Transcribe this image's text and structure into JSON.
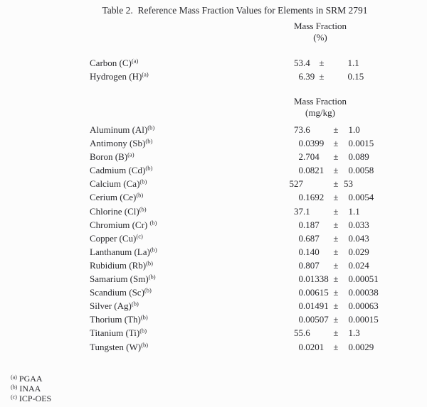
{
  "page": {
    "title": "Table 2.  Reference Mass Fraction Values for Elements in SRM 2791"
  },
  "colors": {
    "background": "#fcfcfc",
    "text": "#28282c"
  },
  "table": {
    "plus_minus": "±",
    "sections": [
      {
        "header_line1": "Mass Fraction",
        "header_line2": "(%)",
        "rows": [
          {
            "element": "Carbon (C)",
            "sup": "(a)",
            "value": "53.4",
            "uncertainty": "1.1"
          },
          {
            "element": "Hydrogen (H)",
            "sup": "(a)",
            "value": "6.39",
            "uncertainty": "0.15"
          }
        ]
      },
      {
        "header_line1": "Mass Fraction",
        "header_line2": "(mg/kg)",
        "rows": [
          {
            "element": "Aluminum (Al)",
            "sup": "(b)",
            "value": "73.6",
            "uncertainty": "1.0"
          },
          {
            "element": "Antimony (Sb)",
            "sup": "(b)",
            "value": "0.0399",
            "uncertainty": "0.0015"
          },
          {
            "element": "Boron (B)",
            "sup": "(a)",
            "value": "2.704",
            "uncertainty": "0.089"
          },
          {
            "element": "Cadmium (Cd)",
            "sup": "(b)",
            "value": "0.0821",
            "uncertainty": "0.0058"
          },
          {
            "element": "Calcium (Ca)",
            "sup": "(b)",
            "value": "527",
            "uncertainty": "53"
          },
          {
            "element": "Cerium (Ce)",
            "sup": "(b)",
            "value": "0.1692",
            "uncertainty": "0.0054"
          },
          {
            "element": "Chlorine (Cl)",
            "sup": "(b)",
            "value": "37.1",
            "uncertainty": "1.1"
          },
          {
            "element": "Chromium (Cr) ",
            "sup": "(b)",
            "value": "0.187",
            "uncertainty": "0.033"
          },
          {
            "element": "Copper (Cu)",
            "sup": "(c)",
            "value": "0.687",
            "uncertainty": "0.043"
          },
          {
            "element": "Lanthanum (La)",
            "sup": "(b)",
            "value": "0.140",
            "uncertainty": "0.029"
          },
          {
            "element": "Rubidium (Rb)",
            "sup": "(b)",
            "value": "0.807",
            "uncertainty": "0.024"
          },
          {
            "element": "Samarium (Sm)",
            "sup": "(b)",
            "value": "0.01338",
            "uncertainty": "0.00051"
          },
          {
            "element": "Scandium (Sc)",
            "sup": "(b)",
            "value": "0.00615",
            "uncertainty": "0.00038"
          },
          {
            "element": "Silver (Ag)",
            "sup": "(b)",
            "value": "0.01491",
            "uncertainty": "0.00063"
          },
          {
            "element": "Thorium (Th)",
            "sup": "(b)",
            "value": "0.00507",
            "uncertainty": "0.00015"
          },
          {
            "element": "Titanium (Ti)",
            "sup": "(b)",
            "value": "55.6",
            "uncertainty": "1.3"
          },
          {
            "element": "Tungsten (W)",
            "sup": "(b)",
            "value": "0.0201",
            "uncertainty": "0.0029"
          }
        ]
      }
    ]
  },
  "footnotes": [
    {
      "marker": "(a)",
      "label": "PGAA"
    },
    {
      "marker": "(b)",
      "label": "INAA"
    },
    {
      "marker": "(c)",
      "label": "ICP-OES"
    }
  ]
}
